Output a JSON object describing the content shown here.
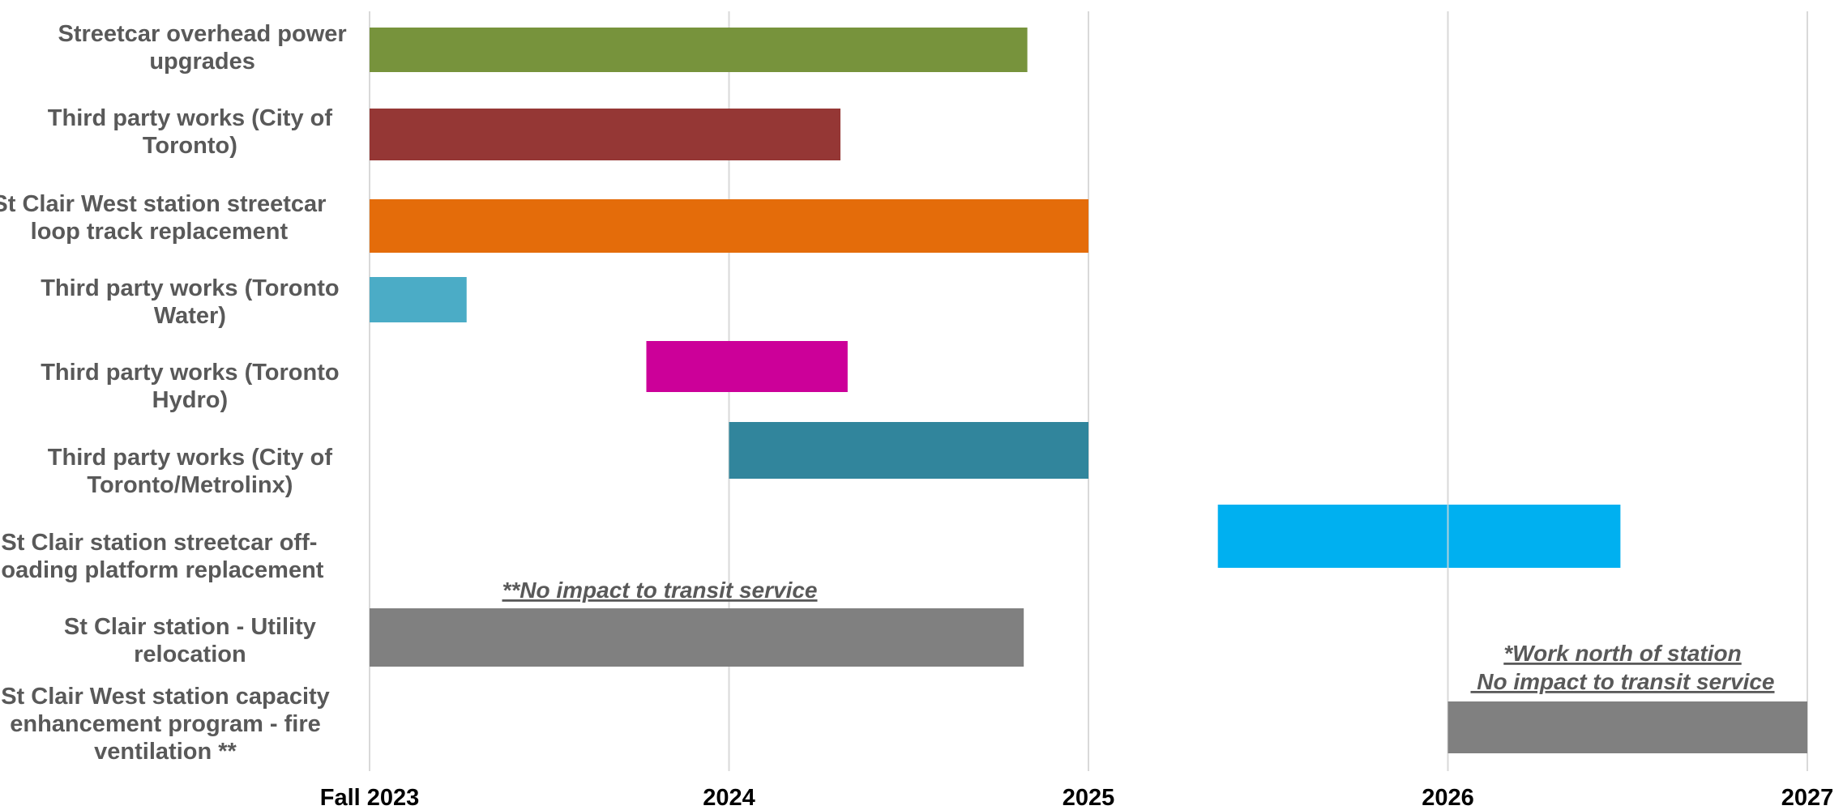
{
  "chart_data": {
    "type": "bar",
    "orientation": "horizontal",
    "title": "",
    "xlabel": "",
    "ylabel": "",
    "x_ticks": [
      "Fall 2023",
      "2024",
      "2025",
      "2026",
      "2027"
    ],
    "x_tick_values": [
      2023.0,
      2024.0,
      2025.0,
      2026.0,
      2027.0
    ],
    "xlim": [
      2023.0,
      2027.0
    ],
    "grid": "vertical",
    "legend": "none",
    "categories": [
      {
        "label_lines": [
          "Streetcar overhead power",
          "upgrades"
        ],
        "start": 2023.0,
        "end": 2024.83,
        "color": "#77933C"
      },
      {
        "label_lines": [
          "Third party works (City of",
          "Toronto)"
        ],
        "start": 2023.0,
        "end": 2024.31,
        "color": "#953735"
      },
      {
        "label_lines": [
          "St Clair West station streetcar",
          "loop track replacement"
        ],
        "start": 2023.0,
        "end": 2025.0,
        "color": "#E46C0A"
      },
      {
        "label_lines": [
          "Third party works (Toronto",
          "Water)"
        ],
        "start": 2023.0,
        "end": 2023.27,
        "color": "#4BACC6"
      },
      {
        "label_lines": [
          "Third party works (Toronto",
          "Hydro)"
        ],
        "start": 2023.77,
        "end": 2024.33,
        "color": "#CC0099"
      },
      {
        "label_lines": [
          "Third party works (City of",
          "Toronto/Metrolinx)"
        ],
        "start": 2024.0,
        "end": 2025.0,
        "color": "#31859C"
      },
      {
        "label_lines": [
          "St Clair station streetcar off-",
          "loading platform replacement"
        ],
        "start": 2025.36,
        "end": 2026.48,
        "color": "#00B0F0"
      },
      {
        "label_lines": [
          "St Clair station - Utility",
          "relocation"
        ],
        "start": 2023.0,
        "end": 2024.82,
        "color": "#808080"
      },
      {
        "label_lines": [
          "St Clair West station capacity",
          "enhancement program - fire",
          "ventilation **"
        ],
        "start": 2026.0,
        "end": 2027.0,
        "color": "#808080"
      }
    ],
    "annotations": [
      {
        "lines": [
          "**No impact to transit service"
        ],
        "anchor_row": 7
      },
      {
        "lines": [
          "*Work north of station",
          " No impact to transit service"
        ],
        "anchor_row": 8
      }
    ]
  }
}
